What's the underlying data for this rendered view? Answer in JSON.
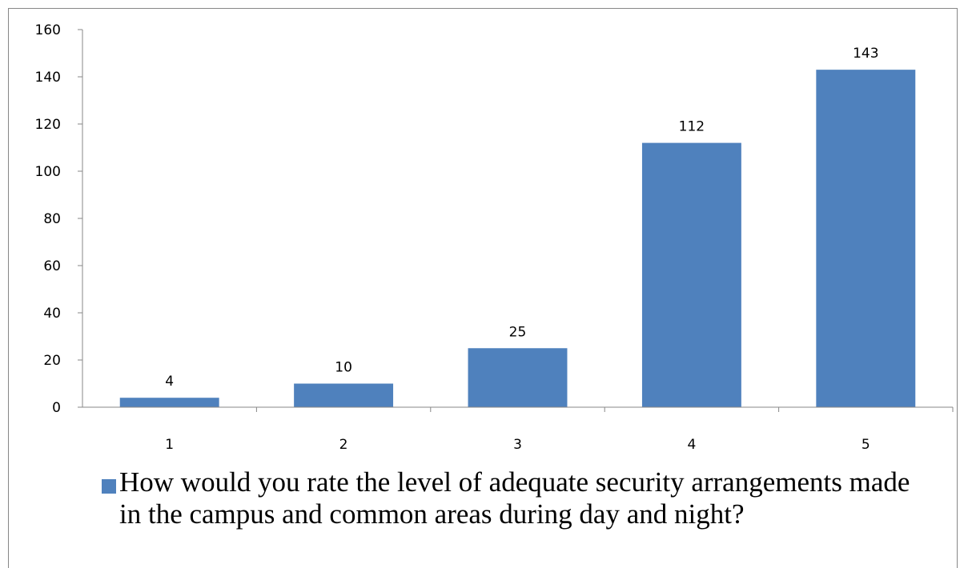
{
  "chart_data": {
    "type": "bar",
    "categories": [
      "1",
      "2",
      "3",
      "4",
      "5"
    ],
    "series": [
      {
        "name": "How would you rate the level of adequate security arrangements made in the campus and common areas during day and night?",
        "values": [
          4,
          10,
          25,
          112,
          143
        ],
        "color": "#4F81BD"
      }
    ],
    "data_labels": [
      "4",
      "10",
      "25",
      "112",
      "143"
    ],
    "ylim": [
      0,
      160
    ],
    "yticks": [
      0,
      20,
      40,
      60,
      80,
      100,
      120,
      140,
      160
    ],
    "grid": false,
    "legend": "bottom",
    "axis_color": "#878787"
  }
}
